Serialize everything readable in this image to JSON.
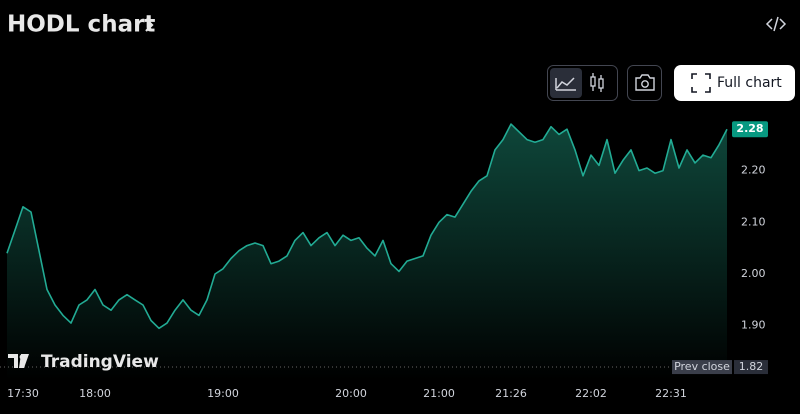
{
  "header": {
    "title": "HODL chart",
    "button": "Full chart",
    "brand": "TradingView"
  },
  "chart_data": {
    "type": "area",
    "color": "#22ab94",
    "categories": [
      null,
      null,
      "17:30",
      null,
      null,
      null,
      null,
      null,
      null,
      null,
      null,
      "18:00",
      null,
      null,
      null,
      null,
      null,
      null,
      null,
      null,
      null,
      null,
      null,
      null,
      null,
      null,
      null,
      "19:00",
      null,
      null,
      null,
      null,
      null,
      null,
      null,
      null,
      null,
      null,
      null,
      null,
      null,
      null,
      null,
      "20:00",
      null,
      null,
      null,
      null,
      null,
      null,
      null,
      null,
      null,
      null,
      "21:00",
      null,
      null,
      null,
      null,
      null,
      null,
      null,
      null,
      "21:26",
      null,
      null,
      null,
      null,
      null,
      null,
      null,
      null,
      null,
      "22:02",
      null,
      null,
      null,
      null,
      null,
      null,
      null,
      null,
      null,
      "22:31",
      null,
      null,
      null,
      null,
      null,
      null,
      null
    ],
    "values": [
      2.04,
      2.085,
      2.13,
      2.12,
      2.045,
      1.97,
      1.94,
      1.92,
      1.905,
      1.94,
      1.95,
      1.97,
      1.94,
      1.93,
      1.95,
      1.96,
      1.95,
      1.94,
      1.91,
      1.895,
      1.905,
      1.93,
      1.95,
      1.93,
      1.92,
      1.95,
      2.0,
      2.01,
      2.03,
      2.045,
      2.055,
      2.06,
      2.055,
      2.02,
      2.025,
      2.035,
      2.065,
      2.08,
      2.055,
      2.07,
      2.08,
      2.055,
      2.075,
      2.065,
      2.07,
      2.05,
      2.035,
      2.065,
      2.02,
      2.005,
      2.025,
      2.03,
      2.035,
      2.075,
      2.1,
      2.115,
      2.11,
      2.135,
      2.16,
      2.18,
      2.19,
      2.24,
      2.26,
      2.29,
      2.275,
      2.26,
      2.255,
      2.26,
      2.285,
      2.27,
      2.28,
      2.24,
      2.19,
      2.23,
      2.21,
      2.26,
      2.195,
      2.22,
      2.24,
      2.2,
      2.205,
      2.195,
      2.2,
      2.26,
      2.205,
      2.24,
      2.215,
      2.23,
      2.225,
      2.25,
      2.28
    ],
    "ylim": [
      1.8,
      2.33
    ],
    "yticks": [
      {
        "value": 1.9,
        "label": "1.90"
      },
      {
        "value": 2.0,
        "label": "2.00"
      },
      {
        "value": 2.1,
        "label": "2.10"
      },
      {
        "value": 2.2,
        "label": "2.20"
      }
    ],
    "prev_close_label": "Prev close",
    "prev_close": 1.82
  }
}
